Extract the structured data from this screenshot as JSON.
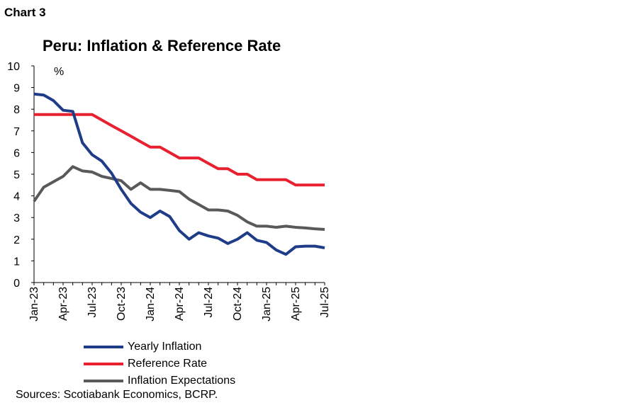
{
  "chart_label": "Chart 3",
  "chart_data": {
    "type": "line",
    "title": "Peru: Inflation & Reference Rate",
    "ylabel": "%",
    "xlabel": "",
    "ylim": [
      0,
      10
    ],
    "yticks": [
      "0",
      "1",
      "2",
      "3",
      "4",
      "5",
      "6",
      "7",
      "8",
      "9",
      "10"
    ],
    "x": [
      "Jan-23",
      "Feb-23",
      "Mar-23",
      "Apr-23",
      "May-23",
      "Jun-23",
      "Jul-23",
      "Aug-23",
      "Sep-23",
      "Oct-23",
      "Nov-23",
      "Dec-23",
      "Jan-24",
      "Feb-24",
      "Mar-24",
      "Apr-24",
      "May-24",
      "Jun-24",
      "Jul-24",
      "Aug-24",
      "Sep-24",
      "Oct-24",
      "Nov-24",
      "Dec-24",
      "Jan-25",
      "Feb-25",
      "Mar-25",
      "Apr-25",
      "May-25",
      "Jun-25",
      "Jul-25"
    ],
    "xtick_labels": [
      "Jan-23",
      "Apr-23",
      "Jul-23",
      "Oct-23",
      "Jan-24",
      "Apr-24",
      "Jul-24",
      "Oct-24",
      "Jan-25",
      "Apr-25",
      "Jul-25"
    ],
    "grid": false,
    "legend_position": "bottom",
    "series": [
      {
        "name": "Yearly Inflation",
        "color": "#1f3c88",
        "values": [
          8.7,
          8.65,
          8.4,
          7.95,
          7.9,
          6.45,
          5.9,
          5.6,
          5.05,
          4.3,
          3.65,
          3.25,
          3.0,
          3.3,
          3.05,
          2.4,
          2.0,
          2.3,
          2.15,
          2.05,
          1.8,
          2.0,
          2.3,
          1.95,
          1.85,
          1.5,
          1.3,
          1.65,
          1.68,
          1.68,
          1.6
        ]
      },
      {
        "name": "Reference Rate",
        "color": "#e8202f",
        "values": [
          7.75,
          7.75,
          7.75,
          7.75,
          7.75,
          7.75,
          7.75,
          7.5,
          7.25,
          7.0,
          6.75,
          6.5,
          6.25,
          6.25,
          6.0,
          5.75,
          5.75,
          5.75,
          5.5,
          5.25,
          5.25,
          5.0,
          5.0,
          4.75,
          4.75,
          4.75,
          4.75,
          4.5,
          4.5,
          4.5,
          4.5
        ]
      },
      {
        "name": "Inflation Expectations",
        "color": "#595959",
        "values": [
          3.75,
          4.4,
          4.65,
          4.9,
          5.35,
          5.15,
          5.1,
          4.9,
          4.8,
          4.7,
          4.3,
          4.6,
          4.3,
          4.3,
          4.25,
          4.2,
          3.85,
          3.6,
          3.35,
          3.35,
          3.3,
          3.1,
          2.8,
          2.6,
          2.6,
          2.55,
          2.6,
          2.55,
          2.52,
          2.48,
          2.45
        ]
      }
    ]
  },
  "source": "Sources: Scotiabank Economics, BCRP."
}
